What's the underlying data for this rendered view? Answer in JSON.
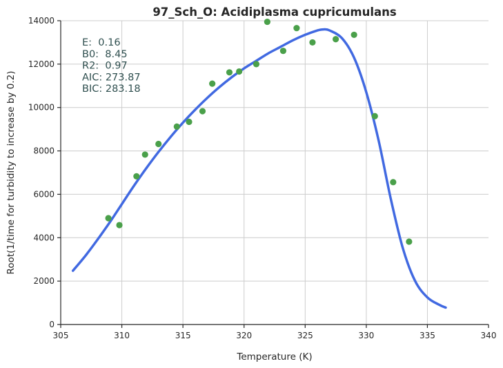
{
  "chart_data": {
    "type": "scatter",
    "title": "97_Sch_O: Acidiplasma cupricumulans",
    "xlabel": "Temperature (K)",
    "ylabel": "Root(1/time for turbidity to increase by 0.2)",
    "xlim": [
      305,
      340
    ],
    "ylim": [
      0,
      14000
    ],
    "x_ticks": [
      305,
      310,
      315,
      320,
      325,
      330,
      335,
      340
    ],
    "y_ticks": [
      0,
      2000,
      4000,
      6000,
      8000,
      10000,
      12000,
      14000
    ],
    "grid": true,
    "annotation_lines": [
      "E:  0.16",
      "B0:  8.45",
      "R2:  0.97",
      "AIC: 273.87",
      "BIC: 283.18"
    ],
    "colors": {
      "points": "#4aa04a",
      "fit": "#4169e1",
      "annotation": "#2f4f4f"
    },
    "points": {
      "x": [
        308.9,
        309.8,
        311.2,
        311.9,
        313.0,
        314.5,
        315.5,
        316.6,
        317.4,
        318.8,
        319.6,
        321.0,
        321.9,
        323.2,
        324.3,
        325.6,
        327.5,
        329.0,
        330.7,
        332.2,
        333.5
      ],
      "y": [
        4900,
        4580,
        6830,
        7830,
        8320,
        9120,
        9340,
        9830,
        11100,
        11620,
        11660,
        12000,
        13950,
        12610,
        13660,
        13000,
        13150,
        13350,
        9600,
        6560,
        3820
      ]
    },
    "fit": {
      "x": [
        306.0,
        307.0,
        308.0,
        309.0,
        310.0,
        311.0,
        312.0,
        313.0,
        314.0,
        315.0,
        316.0,
        317.0,
        318.0,
        319.0,
        320.0,
        321.0,
        322.0,
        323.0,
        324.0,
        325.0,
        326.0,
        326.5,
        327.0,
        328.0,
        329.0,
        330.0,
        331.0,
        332.0,
        333.0,
        334.0,
        335.0,
        336.0,
        336.5
      ],
      "y": [
        2480,
        3150,
        3900,
        4700,
        5550,
        6400,
        7200,
        7950,
        8650,
        9300,
        9900,
        10450,
        10950,
        11400,
        11800,
        12150,
        12500,
        12800,
        13100,
        13350,
        13550,
        13600,
        13550,
        13200,
        12300,
        10700,
        8500,
        5800,
        3500,
        2000,
        1250,
        900,
        780
      ]
    }
  }
}
